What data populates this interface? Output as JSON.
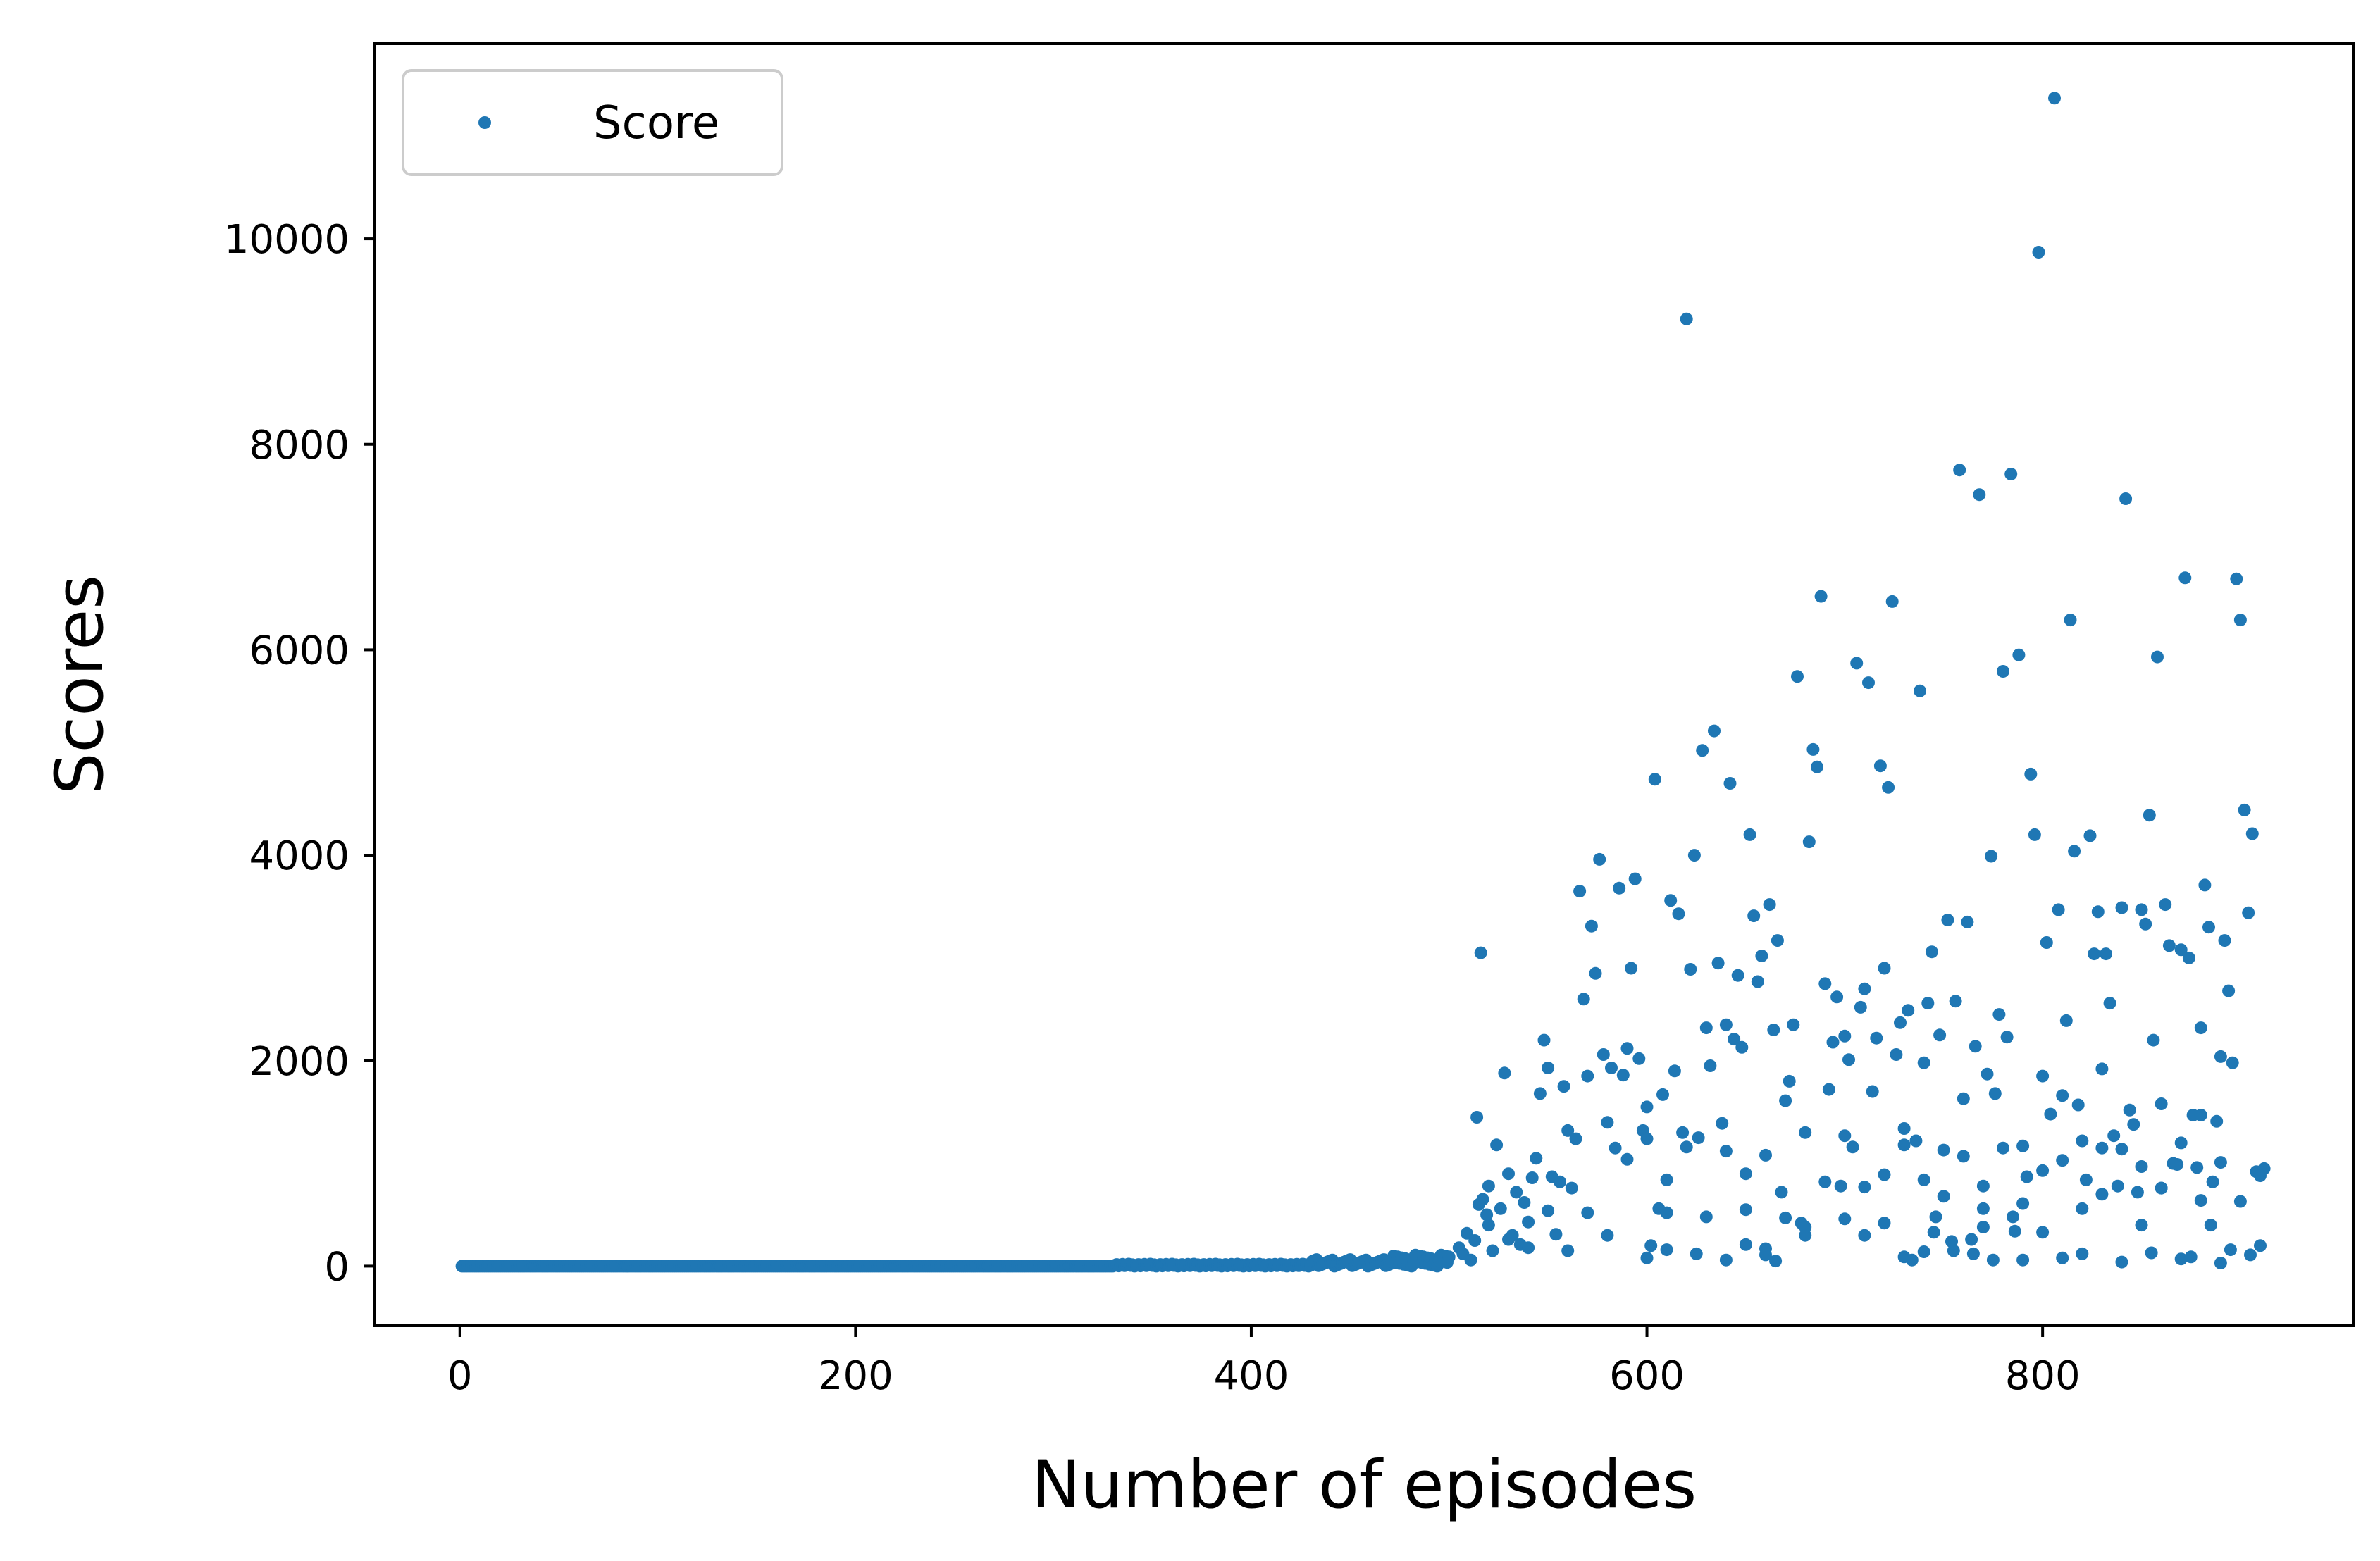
{
  "chart_data": {
    "type": "scatter",
    "title": "",
    "xlabel": "Number of episodes",
    "ylabel": "Scores",
    "xlim": [
      -43,
      957
    ],
    "ylim": [
      -580,
      11900
    ],
    "xticks": [
      0,
      200,
      400,
      600,
      800
    ],
    "yticks": [
      0,
      2000,
      4000,
      6000,
      8000,
      10000
    ],
    "grid": false,
    "legend": {
      "position": "top-left",
      "entries": [
        "Score"
      ]
    },
    "series": [
      {
        "name": "Score",
        "color": "#1f77b4",
        "marker": "point",
        "baseline": {
          "description": "near-zero scores for episodes 1-500 (dense band)",
          "x_start": 1,
          "x_end": 500,
          "y_min": 0,
          "y_max": 120
        },
        "points": [
          [
            505,
            180
          ],
          [
            507,
            120
          ],
          [
            509,
            320
          ],
          [
            511,
            60
          ],
          [
            513,
            250
          ],
          [
            514,
            1450
          ],
          [
            516,
            3050
          ],
          [
            517,
            650
          ],
          [
            519,
            500
          ],
          [
            520,
            780
          ],
          [
            522,
            150
          ],
          [
            524,
            1180
          ],
          [
            526,
            560
          ],
          [
            528,
            1880
          ],
          [
            530,
            900
          ],
          [
            532,
            300
          ],
          [
            534,
            720
          ],
          [
            536,
            210
          ],
          [
            538,
            620
          ],
          [
            540,
            430
          ],
          [
            542,
            860
          ],
          [
            544,
            1050
          ],
          [
            546,
            1680
          ],
          [
            548,
            2200
          ],
          [
            550,
            1930
          ],
          [
            552,
            870
          ],
          [
            554,
            310
          ],
          [
            556,
            820
          ],
          [
            558,
            1750
          ],
          [
            560,
            1320
          ],
          [
            562,
            760
          ],
          [
            564,
            1240
          ],
          [
            566,
            3650
          ],
          [
            568,
            2600
          ],
          [
            570,
            1850
          ],
          [
            572,
            3310
          ],
          [
            574,
            2850
          ],
          [
            576,
            3960
          ],
          [
            578,
            2060
          ],
          [
            580,
            1400
          ],
          [
            582,
            1930
          ],
          [
            584,
            1150
          ],
          [
            586,
            3680
          ],
          [
            588,
            1860
          ],
          [
            590,
            2120
          ],
          [
            592,
            2900
          ],
          [
            594,
            3770
          ],
          [
            596,
            2020
          ],
          [
            598,
            1320
          ],
          [
            600,
            1550
          ],
          [
            602,
            200
          ],
          [
            604,
            4740
          ],
          [
            606,
            560
          ],
          [
            608,
            1670
          ],
          [
            610,
            520
          ],
          [
            612,
            3560
          ],
          [
            614,
            1900
          ],
          [
            616,
            3430
          ],
          [
            618,
            1300
          ],
          [
            620,
            9220
          ],
          [
            622,
            2890
          ],
          [
            624,
            4000
          ],
          [
            626,
            1250
          ],
          [
            628,
            5020
          ],
          [
            630,
            2320
          ],
          [
            632,
            1950
          ],
          [
            634,
            5210
          ],
          [
            636,
            2950
          ],
          [
            638,
            1390
          ],
          [
            640,
            2350
          ],
          [
            642,
            4700
          ],
          [
            644,
            2210
          ],
          [
            646,
            2830
          ],
          [
            648,
            2130
          ],
          [
            650,
            550
          ],
          [
            652,
            4200
          ],
          [
            654,
            3410
          ],
          [
            656,
            2770
          ],
          [
            658,
            3020
          ],
          [
            660,
            1080
          ],
          [
            662,
            3520
          ],
          [
            664,
            2300
          ],
          [
            666,
            3170
          ],
          [
            668,
            720
          ],
          [
            670,
            1610
          ],
          [
            672,
            1800
          ],
          [
            674,
            2350
          ],
          [
            676,
            5740
          ],
          [
            678,
            420
          ],
          [
            680,
            300
          ],
          [
            682,
            4130
          ],
          [
            684,
            5030
          ],
          [
            686,
            4860
          ],
          [
            688,
            6520
          ],
          [
            690,
            2750
          ],
          [
            692,
            1720
          ],
          [
            694,
            2180
          ],
          [
            696,
            2620
          ],
          [
            698,
            780
          ],
          [
            700,
            2240
          ],
          [
            702,
            2010
          ],
          [
            704,
            1160
          ],
          [
            706,
            5870
          ],
          [
            708,
            2520
          ],
          [
            710,
            2700
          ],
          [
            712,
            5680
          ],
          [
            714,
            1700
          ],
          [
            716,
            2220
          ],
          [
            718,
            4870
          ],
          [
            720,
            2900
          ],
          [
            722,
            4660
          ],
          [
            724,
            6470
          ],
          [
            726,
            2060
          ],
          [
            728,
            2370
          ],
          [
            730,
            1340
          ],
          [
            732,
            2490
          ],
          [
            734,
            60
          ],
          [
            736,
            1220
          ],
          [
            738,
            5600
          ],
          [
            740,
            1980
          ],
          [
            742,
            2560
          ],
          [
            744,
            3060
          ],
          [
            746,
            480
          ],
          [
            748,
            2250
          ],
          [
            750,
            1130
          ],
          [
            752,
            3370
          ],
          [
            754,
            240
          ],
          [
            756,
            2580
          ],
          [
            758,
            7750
          ],
          [
            760,
            1630
          ],
          [
            762,
            3350
          ],
          [
            764,
            260
          ],
          [
            766,
            2140
          ],
          [
            768,
            7510
          ],
          [
            770,
            780
          ],
          [
            772,
            1870
          ],
          [
            774,
            3990
          ],
          [
            776,
            1680
          ],
          [
            778,
            2450
          ],
          [
            780,
            5790
          ],
          [
            782,
            2230
          ],
          [
            784,
            7710
          ],
          [
            786,
            340
          ],
          [
            788,
            5950
          ],
          [
            790,
            1170
          ],
          [
            792,
            870
          ],
          [
            794,
            4790
          ],
          [
            796,
            4200
          ],
          [
            798,
            9870
          ],
          [
            800,
            1850
          ],
          [
            802,
            3150
          ],
          [
            804,
            1480
          ],
          [
            806,
            11370
          ],
          [
            808,
            3470
          ],
          [
            810,
            1660
          ],
          [
            812,
            2390
          ],
          [
            814,
            6290
          ],
          [
            816,
            4040
          ],
          [
            818,
            1570
          ],
          [
            820,
            560
          ],
          [
            822,
            840
          ],
          [
            824,
            4190
          ],
          [
            826,
            3040
          ],
          [
            828,
            3450
          ],
          [
            830,
            1920
          ],
          [
            832,
            3040
          ],
          [
            834,
            2560
          ],
          [
            836,
            1270
          ],
          [
            838,
            780
          ],
          [
            840,
            3490
          ],
          [
            842,
            7470
          ],
          [
            844,
            1520
          ],
          [
            846,
            1380
          ],
          [
            848,
            720
          ],
          [
            850,
            3470
          ],
          [
            852,
            3330
          ],
          [
            854,
            4390
          ],
          [
            856,
            2200
          ],
          [
            858,
            5930
          ],
          [
            860,
            1580
          ],
          [
            862,
            3520
          ],
          [
            864,
            3120
          ],
          [
            866,
            1000
          ],
          [
            868,
            990
          ],
          [
            870,
            3080
          ],
          [
            872,
            6700
          ],
          [
            874,
            3000
          ],
          [
            876,
            1470
          ],
          [
            878,
            960
          ],
          [
            880,
            2320
          ],
          [
            882,
            3710
          ],
          [
            884,
            3300
          ],
          [
            886,
            820
          ],
          [
            888,
            1410
          ],
          [
            890,
            2040
          ],
          [
            892,
            3170
          ],
          [
            894,
            2680
          ],
          [
            896,
            1980
          ],
          [
            898,
            6690
          ],
          [
            900,
            6290
          ],
          [
            902,
            4440
          ],
          [
            904,
            3440
          ],
          [
            906,
            4210
          ],
          [
            908,
            920
          ],
          [
            910,
            200
          ],
          [
            912,
            950
          ],
          [
            600,
            80
          ],
          [
            610,
            160
          ],
          [
            625,
            120
          ],
          [
            640,
            60
          ],
          [
            650,
            210
          ],
          [
            660,
            110
          ],
          [
            665,
            50
          ],
          [
            680,
            380
          ],
          [
            700,
            460
          ],
          [
            710,
            300
          ],
          [
            720,
            420
          ],
          [
            730,
            90
          ],
          [
            740,
            140
          ],
          [
            745,
            330
          ],
          [
            755,
            150
          ],
          [
            765,
            120
          ],
          [
            770,
            380
          ],
          [
            775,
            60
          ],
          [
            785,
            480
          ],
          [
            790,
            60
          ],
          [
            800,
            330
          ],
          [
            810,
            80
          ],
          [
            820,
            120
          ],
          [
            830,
            700
          ],
          [
            840,
            40
          ],
          [
            850,
            400
          ],
          [
            855,
            130
          ],
          [
            860,
            760
          ],
          [
            870,
            70
          ],
          [
            875,
            90
          ],
          [
            880,
            640
          ],
          [
            885,
            400
          ],
          [
            890,
            30
          ],
          [
            895,
            160
          ],
          [
            905,
            110
          ],
          [
            910,
            880
          ],
          [
            515,
            600
          ],
          [
            520,
            400
          ],
          [
            530,
            260
          ],
          [
            540,
            180
          ],
          [
            550,
            540
          ],
          [
            560,
            150
          ],
          [
            570,
            520
          ],
          [
            580,
            300
          ],
          [
            590,
            1040
          ],
          [
            600,
            1240
          ],
          [
            610,
            840
          ],
          [
            620,
            1160
          ],
          [
            630,
            480
          ],
          [
            640,
            1120
          ],
          [
            650,
            900
          ],
          [
            660,
            170
          ],
          [
            670,
            470
          ],
          [
            680,
            1300
          ],
          [
            690,
            820
          ],
          [
            700,
            1270
          ],
          [
            710,
            770
          ],
          [
            720,
            890
          ],
          [
            730,
            1180
          ],
          [
            740,
            840
          ],
          [
            750,
            680
          ],
          [
            760,
            1070
          ],
          [
            770,
            560
          ],
          [
            780,
            1150
          ],
          [
            790,
            610
          ],
          [
            800,
            930
          ],
          [
            810,
            1030
          ],
          [
            820,
            1220
          ],
          [
            830,
            1150
          ],
          [
            840,
            1140
          ],
          [
            850,
            970
          ],
          [
            860,
            760
          ],
          [
            870,
            1200
          ],
          [
            880,
            1470
          ],
          [
            890,
            1010
          ],
          [
            900,
            630
          ]
        ]
      }
    ]
  }
}
